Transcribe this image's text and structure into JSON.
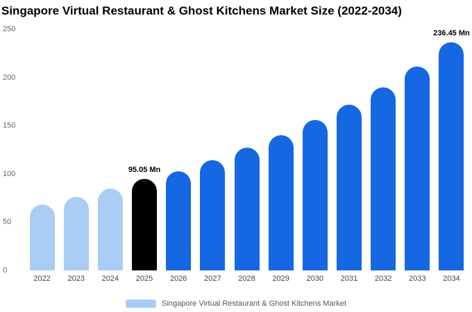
{
  "title": "Singapore Virtual Restaurant & Ghost Kitchens Market Size (2022-2034)",
  "legend": {
    "label": "Singapore Virtual Restaurant & Ghost Kitchens Market",
    "swatch_color": "#a9cdf4"
  },
  "colors": {
    "historical": "#a9cdf4",
    "base_year": "#000000",
    "forecast": "#1567e2"
  },
  "chart_data": {
    "type": "bar",
    "title": "Singapore Virtual Restaurant & Ghost Kitchens Market Size (2022-2034)",
    "categories": [
      "2022",
      "2023",
      "2024",
      "2025",
      "2026",
      "2027",
      "2028",
      "2029",
      "2030",
      "2031",
      "2032",
      "2033",
      "2034"
    ],
    "values": [
      68,
      76,
      85,
      95.05,
      103,
      114,
      127,
      140,
      156,
      172,
      190,
      211,
      236.45
    ],
    "unit": "Mn",
    "xlabel": "",
    "ylabel": "",
    "ylim": [
      0,
      250
    ],
    "yticks": [
      0,
      50,
      100,
      150,
      200,
      250
    ],
    "grid": false,
    "legend_position": "bottom",
    "bar_colors": [
      "#a9cdf4",
      "#a9cdf4",
      "#a9cdf4",
      "#000000",
      "#1567e2",
      "#1567e2",
      "#1567e2",
      "#1567e2",
      "#1567e2",
      "#1567e2",
      "#1567e2",
      "#1567e2",
      "#1567e2"
    ],
    "annotations": [
      {
        "index": 3,
        "category": "2025",
        "label": "95.05 Mn"
      },
      {
        "index": 12,
        "category": "2034",
        "label": "236.45 Mn"
      }
    ]
  }
}
